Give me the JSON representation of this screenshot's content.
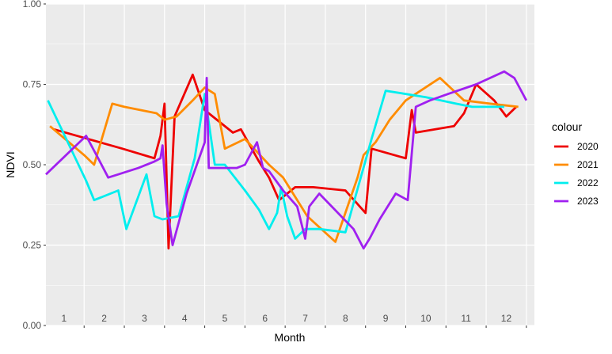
{
  "chart_data": {
    "type": "line",
    "title": "",
    "xlabel": "Month",
    "ylabel": "NDVI",
    "ylim": [
      0,
      1
    ],
    "xlim": [
      0.55,
      12.7
    ],
    "y_ticks": [
      "0.00",
      "0.25",
      "0.50",
      "0.75",
      "1.00"
    ],
    "y_tick_values": [
      0,
      0.25,
      0.5,
      0.75,
      1.0
    ],
    "month_labels": [
      "1",
      "2",
      "3",
      "4",
      "5",
      "6",
      "7",
      "8",
      "9",
      "10",
      "11",
      "12"
    ],
    "grid": true,
    "legend": {
      "title": "colour",
      "position": "right"
    },
    "series": [
      {
        "name": "2020",
        "color": "#EE0000",
        "x": [
          0.75,
          2.45,
          3.25,
          3.4,
          3.5,
          3.6,
          3.75,
          4.2,
          4.5,
          5.2,
          5.4,
          5.85,
          6.1,
          6.35,
          6.75,
          7.2,
          8.0,
          8.5,
          8.65,
          9.5,
          9.65,
          9.75,
          10.7,
          10.95,
          11.25,
          11.7,
          12.0,
          12.25
        ],
        "y": [
          0.61,
          0.55,
          0.52,
          0.59,
          0.69,
          0.24,
          0.65,
          0.78,
          0.67,
          0.6,
          0.61,
          0.51,
          0.46,
          0.39,
          0.43,
          0.43,
          0.42,
          0.35,
          0.55,
          0.52,
          0.67,
          0.6,
          0.62,
          0.66,
          0.75,
          0.7,
          0.65,
          0.68
        ]
      },
      {
        "name": "2021",
        "color": "#FF8C00",
        "x": [
          0.65,
          1.5,
          1.75,
          2.2,
          2.5,
          3.3,
          3.5,
          3.8,
          4.2,
          4.5,
          4.75,
          5.0,
          5.5,
          6.1,
          6.45,
          7.05,
          7.75,
          8.3,
          8.45,
          8.75,
          9.1,
          9.5,
          10.35,
          10.95,
          11.6,
          12.3
        ],
        "y": [
          0.62,
          0.53,
          0.5,
          0.69,
          0.68,
          0.66,
          0.64,
          0.65,
          0.7,
          0.74,
          0.72,
          0.55,
          0.58,
          0.5,
          0.46,
          0.34,
          0.26,
          0.46,
          0.53,
          0.57,
          0.64,
          0.7,
          0.77,
          0.7,
          0.69,
          0.68
        ]
      },
      {
        "name": "2022",
        "color": "#00EEEE",
        "x": [
          0.6,
          1.55,
          1.75,
          2.35,
          2.55,
          3.05,
          3.25,
          3.45,
          3.85,
          4.25,
          4.5,
          4.75,
          5.0,
          5.5,
          5.85,
          6.1,
          6.3,
          6.4,
          6.55,
          6.75,
          7.0,
          7.35,
          8.0,
          8.65,
          9.0,
          10.0,
          10.75,
          11.15,
          11.95
        ],
        "y": [
          0.7,
          0.45,
          0.39,
          0.42,
          0.3,
          0.47,
          0.34,
          0.33,
          0.34,
          0.52,
          0.72,
          0.5,
          0.5,
          0.42,
          0.36,
          0.3,
          0.35,
          0.43,
          0.34,
          0.27,
          0.3,
          0.3,
          0.29,
          0.58,
          0.73,
          0.71,
          0.69,
          0.68,
          0.68
        ]
      },
      {
        "name": "2023",
        "color": "#A020F0",
        "x": [
          0.55,
          1.55,
          1.85,
          2.1,
          2.35,
          2.85,
          3.25,
          3.4,
          3.45,
          3.55,
          3.7,
          4.05,
          4.5,
          4.55,
          4.6,
          5.05,
          5.3,
          5.5,
          5.8,
          5.95,
          6.1,
          6.45,
          6.8,
          7.0,
          7.1,
          7.35,
          8.2,
          8.45,
          8.6,
          8.85,
          9.25,
          9.55,
          9.75,
          10.1,
          10.55,
          11.25,
          11.95,
          12.2,
          12.5
        ],
        "y": [
          0.47,
          0.59,
          0.52,
          0.46,
          0.47,
          0.49,
          0.51,
          0.52,
          0.56,
          0.38,
          0.25,
          0.41,
          0.57,
          0.77,
          0.49,
          0.49,
          0.49,
          0.5,
          0.57,
          0.49,
          0.48,
          0.42,
          0.37,
          0.27,
          0.37,
          0.41,
          0.3,
          0.24,
          0.27,
          0.33,
          0.41,
          0.39,
          0.68,
          0.7,
          0.72,
          0.75,
          0.79,
          0.77,
          0.7
        ]
      }
    ]
  }
}
